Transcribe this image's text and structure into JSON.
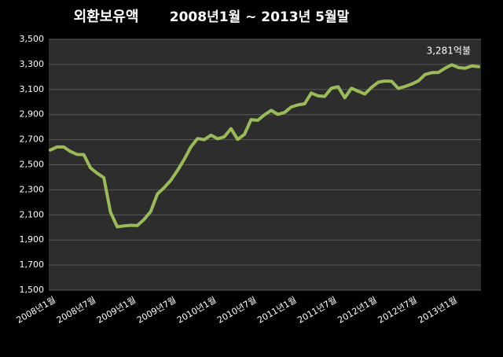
{
  "chart_data": {
    "type": "line",
    "title": "외환보유액",
    "subtitle": "2008년1월 ~ 2013년 5월말",
    "categories": [
      "2008년1월",
      null,
      null,
      null,
      null,
      null,
      "2008년7월",
      null,
      null,
      null,
      null,
      null,
      "2009년1월",
      null,
      null,
      null,
      null,
      null,
      "2009년7월",
      null,
      null,
      null,
      null,
      null,
      "2010년1월",
      null,
      null,
      null,
      null,
      null,
      "2010년7월",
      null,
      null,
      null,
      null,
      null,
      "2011년1월",
      null,
      null,
      null,
      null,
      null,
      "2011년7월",
      null,
      null,
      null,
      null,
      null,
      "2012년1월",
      null,
      null,
      null,
      null,
      null,
      "2012년7월",
      null,
      null,
      null,
      null,
      null,
      "2013년1월",
      null,
      null,
      null,
      null
    ],
    "values": [
      2617,
      2642,
      2642,
      2606,
      2582,
      2581,
      2475,
      2432,
      2397,
      2122,
      2005,
      2012,
      2017,
      2015,
      2063,
      2127,
      2267,
      2317,
      2375,
      2454,
      2542,
      2641,
      2709,
      2700,
      2736,
      2707,
      2723,
      2788,
      2702,
      2742,
      2860,
      2854,
      2898,
      2933,
      2902,
      2916,
      2960,
      2977,
      2986,
      3072,
      3049,
      3045,
      3110,
      3122,
      3034,
      3110,
      3086,
      3064,
      3117,
      3158,
      3168,
      3165,
      3108,
      3124,
      3143,
      3169,
      3220,
      3234,
      3236,
      3270,
      3297,
      3274,
      3270,
      3288,
      3281
    ],
    "value_labels": [
      null,
      null,
      null,
      null,
      null,
      null,
      null,
      null,
      null,
      null,
      null,
      null,
      null,
      null,
      null,
      null,
      null,
      null,
      null,
      null,
      null,
      null,
      null,
      null,
      null,
      null,
      null,
      null,
      null,
      null,
      null,
      null,
      null,
      null,
      null,
      null,
      null,
      null,
      null,
      null,
      null,
      null,
      null,
      null,
      null,
      null,
      null,
      null,
      null,
      null,
      null,
      null,
      null,
      null,
      null,
      null,
      null,
      null,
      null,
      null,
      null,
      null,
      null,
      null,
      "3,281억불"
    ],
    "color": "#9bbb59",
    "ylim": [
      1500,
      3500
    ],
    "yticks": [
      {
        "value": 1500,
        "label": "1,500"
      },
      {
        "value": 1700,
        "label": "1,700"
      },
      {
        "value": 1900,
        "label": "1,900"
      },
      {
        "value": 2100,
        "label": "2,100"
      },
      {
        "value": 2300,
        "label": "2,300"
      },
      {
        "value": 2500,
        "label": "2,500"
      },
      {
        "value": 2700,
        "label": "2,700"
      },
      {
        "value": 2900,
        "label": "2,900"
      },
      {
        "value": 3100,
        "label": "3,100"
      },
      {
        "value": 3300,
        "label": "3,300"
      },
      {
        "value": 3500,
        "label": "3,500"
      }
    ],
    "grid": true
  }
}
